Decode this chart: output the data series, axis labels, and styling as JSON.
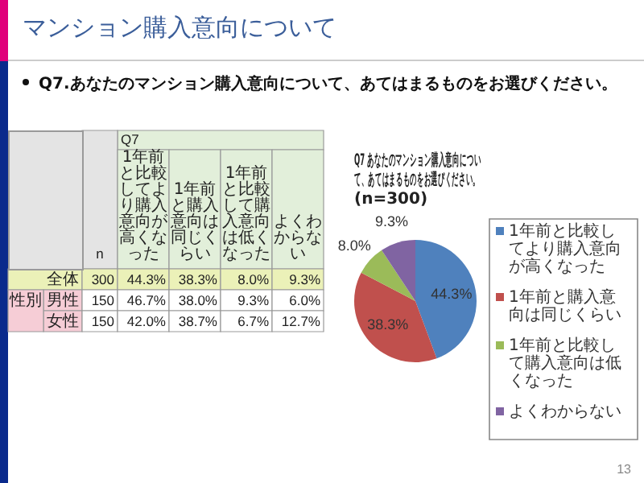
{
  "chart_data": [
    {
      "type": "heatmap",
      "title": "マンション購入意向について",
      "subtitle": "Q7.あなたのマンション購入意向について、あてはまるものをお選びください。",
      "xlabel": "Q7",
      "ylabel": "性別",
      "categories": [
        "n",
        "1年前と比較してより購入意向が高くなった",
        "1年前と購入意向は同じくらい",
        "1年前と比較して購入意向は低くなった",
        "よくわからない"
      ],
      "y_categories": [
        "全体",
        "男性",
        "女性"
      ],
      "cells": [
        [
          300,
          44.3,
          38.3,
          8.0,
          9.3
        ],
        [
          150,
          46.7,
          38.0,
          9.3,
          6.0
        ],
        [
          150,
          42.0,
          38.7,
          6.7,
          12.7
        ]
      ],
      "cell_labels": [
        [
          "300",
          "44.3%",
          "38.3%",
          "8.0%",
          "9.3%"
        ],
        [
          "150",
          "46.7%",
          "38.0%",
          "9.3%",
          "6.0%"
        ],
        [
          "150",
          "42.0%",
          "38.7%",
          "6.7%",
          "12.7%"
        ]
      ]
    },
    {
      "type": "pie",
      "title": "Q7 あなたのマンション購入意向について、あてはまるものをお選びください。 (n=300)",
      "categories": [
        "1年前と比較してより購入意向が高くなった",
        "1年前と購入意向は同じくらい",
        "1年前と比較して購入意向は低くなった",
        "よくわからない"
      ],
      "values": [
        44.3,
        38.3,
        8.0,
        9.3
      ],
      "colors": [
        "#4f81bd",
        "#c0504d",
        "#9bbb59",
        "#8064a2"
      ],
      "value_labels": [
        "44.3%",
        "38.3%",
        "8.0%",
        "9.3%"
      ],
      "legend": "right",
      "annotations": [
        "13"
      ]
    }
  ]
}
